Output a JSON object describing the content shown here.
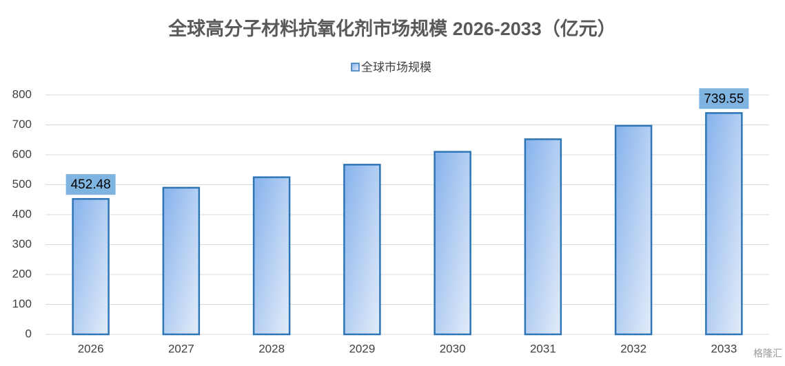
{
  "chart_data": {
    "type": "bar",
    "title": "全球高分子材料抗氧化剂市场规模 2026-2033（亿元）",
    "categories": [
      "2026",
      "2027",
      "2028",
      "2029",
      "2030",
      "2031",
      "2032",
      "2033"
    ],
    "series": [
      {
        "name": "全球市场规模",
        "color": "#2e75b6",
        "values": [
          452.48,
          490,
          525,
          567,
          610,
          652,
          697,
          739.55
        ]
      }
    ],
    "ylim": [
      0,
      800
    ],
    "yticks": [
      0,
      100,
      200,
      300,
      400,
      500,
      600,
      700,
      800
    ],
    "grid": true,
    "legend": "top",
    "watermark": "格隆汇"
  }
}
